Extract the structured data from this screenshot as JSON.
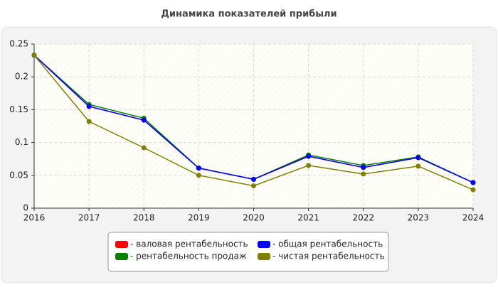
{
  "chart_data": {
    "type": "line",
    "title": "Динамика показателей прибыли",
    "x": [
      2016,
      2017,
      2018,
      2019,
      2020,
      2021,
      2022,
      2023,
      2024
    ],
    "xlim": [
      2016,
      2024
    ],
    "xticks": [
      2016,
      2017,
      2018,
      2019,
      2020,
      2021,
      2022,
      2023,
      2024
    ],
    "ylim": [
      0,
      0.25
    ],
    "yticks": [
      0,
      0.05,
      0.1,
      0.15,
      0.2,
      0.25
    ],
    "grid": true,
    "series": [
      {
        "name": "- валовая рентабельность",
        "color": "#ff0000",
        "values": [
          0.233,
          0.155,
          0.134,
          0.061,
          0.044,
          0.079,
          0.062,
          0.077,
          0.039
        ]
      },
      {
        "name": "- рентабельность продаж",
        "color": "#008000",
        "values": [
          0.233,
          0.158,
          0.137,
          0.061,
          0.044,
          0.081,
          0.065,
          0.078,
          0.039
        ]
      },
      {
        "name": "- общая рентабельность",
        "color": "#0000ff",
        "values": [
          0.233,
          0.155,
          0.134,
          0.061,
          0.044,
          0.079,
          0.062,
          0.077,
          0.039
        ]
      },
      {
        "name": "- чистая рентабельность",
        "color": "#808000",
        "values": [
          0.233,
          0.132,
          0.092,
          0.05,
          0.034,
          0.065,
          0.052,
          0.064,
          0.028
        ]
      }
    ]
  }
}
